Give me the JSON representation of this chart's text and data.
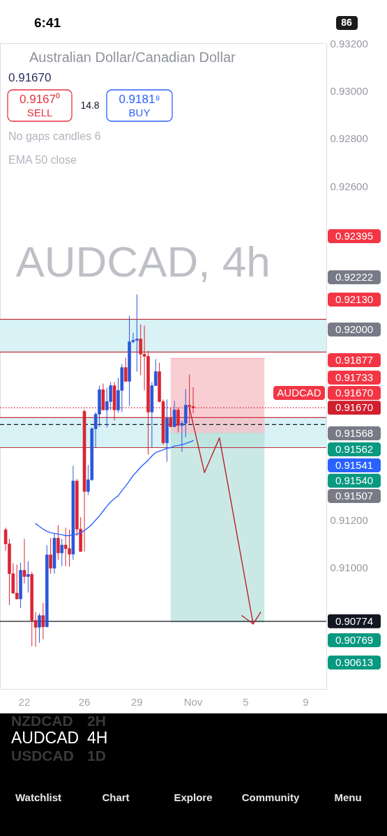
{
  "chart_data": {
    "type": "candlestick",
    "title": "Australian Dollar/Canadian Dollar",
    "subtitle": "0.91670",
    "categories": [
      null,
      null,
      null,
      null,
      null,
      null,
      "22",
      null,
      null,
      null,
      null,
      null,
      null,
      null,
      null,
      null,
      null,
      null,
      null,
      null,
      null,
      null,
      "26",
      null,
      null,
      null,
      null,
      null,
      null,
      null,
      null,
      null,
      null,
      null,
      null,
      null,
      "29",
      null,
      null,
      null,
      null,
      null,
      null,
      null,
      null,
      null,
      null,
      null,
      null,
      null,
      null,
      "Nov",
      null,
      null,
      null,
      null,
      null,
      null,
      null,
      null,
      null,
      null,
      null,
      null,
      null,
      "5",
      null,
      null,
      null,
      null,
      null,
      null,
      null,
      null,
      null,
      null,
      null,
      null,
      null,
      null,
      null,
      "9",
      null,
      null,
      null,
      null,
      null
    ],
    "ohlc": [
      null,
      [
        0.91158,
        0.91167,
        0.9107,
        0.91099
      ],
      [
        0.91099,
        0.9112,
        0.90842,
        0.90974
      ],
      [
        0.90974,
        0.91018,
        0.90892,
        0.90892
      ],
      [
        0.90892,
        0.91012,
        0.90866,
        0.90868
      ],
      [
        0.90868,
        0.9102,
        0.9083,
        0.90988
      ],
      [
        0.90988,
        0.9112,
        0.90933,
        0.90962
      ],
      [
        0.90962,
        0.91026,
        0.90895,
        0.90971
      ],
      [
        0.90971,
        0.90982,
        0.9067,
        0.90778
      ],
      [
        0.90778,
        0.90813,
        0.90667,
        0.90749
      ],
      [
        0.90749,
        0.90807,
        0.90684,
        0.90798
      ],
      [
        0.90798,
        0.90851,
        0.90699,
        0.90751
      ],
      [
        0.90751,
        0.91094,
        0.90749,
        0.91053
      ],
      [
        0.91053,
        0.91123,
        0.90974,
        0.90997
      ],
      [
        0.90997,
        0.91143,
        0.90974,
        0.91123
      ],
      [
        0.91123,
        0.91178,
        0.91032,
        0.91061
      ],
      [
        0.91061,
        0.9112,
        0.91006,
        0.91094
      ],
      [
        0.91094,
        0.91167,
        0.91006,
        0.91079
      ],
      [
        0.91079,
        0.91158,
        0.91003,
        0.91056
      ],
      [
        0.91056,
        0.91427,
        0.91032,
        0.91363
      ],
      [
        0.91363,
        0.91371,
        0.91132,
        0.91161
      ],
      [
        0.91161,
        0.91211,
        0.91067,
        0.91067
      ],
      [
        0.91655,
        0.91664,
        0.91067,
        0.91319
      ],
      [
        0.91319,
        0.9143,
        0.91304,
        0.91368
      ],
      [
        0.91368,
        0.91588,
        0.91363,
        0.91582
      ],
      [
        0.91582,
        0.91652,
        0.91503,
        0.91643
      ],
      [
        0.91643,
        0.91763,
        0.91591,
        0.91746
      ],
      [
        0.91746,
        0.91772,
        0.91661,
        0.91661
      ],
      [
        0.91661,
        0.91754,
        0.91588,
        0.91696
      ],
      [
        0.91696,
        0.91778,
        0.91661,
        0.91763
      ],
      [
        0.91763,
        0.91778,
        0.91617,
        0.91661
      ],
      [
        0.91661,
        0.91795,
        0.91649,
        0.91743
      ],
      [
        0.91743,
        0.91854,
        0.91652,
        0.91839
      ],
      [
        0.91839,
        0.9188,
        0.91781,
        0.91781
      ],
      [
        0.91781,
        0.92056,
        0.91678,
        0.91947
      ],
      [
        0.91947,
        0.91985,
        0.91942,
        0.91953
      ],
      [
        0.91953,
        0.92146,
        0.91822,
        0.91959
      ],
      [
        0.91959,
        0.9202,
        0.91807,
        0.91895
      ],
      [
        0.91895,
        0.92015,
        0.91743,
        0.91886
      ],
      [
        0.91886,
        0.91909,
        0.91474,
        0.91652
      ],
      [
        0.91652,
        0.91778,
        0.91503,
        0.91763
      ],
      [
        0.91763,
        0.91874,
        0.91763,
        0.91822
      ],
      [
        0.91822,
        0.9186,
        0.91693,
        0.91696
      ],
      [
        0.91696,
        0.91705,
        0.91515,
        0.91523
      ],
      [
        0.91523,
        0.91705,
        0.91444,
        0.91626
      ],
      [
        0.91626,
        0.9167,
        0.91588,
        0.91591
      ],
      [
        0.91591,
        0.91699,
        0.91588,
        0.91661
      ],
      [
        0.91661,
        0.9167,
        0.91567,
        0.91596
      ],
      [
        0.91596,
        0.91617,
        0.91485,
        0.91605
      ],
      [
        0.91605,
        0.91749,
        0.91547,
        0.91681
      ],
      [
        0.91681,
        0.9181,
        0.91605,
        0.91675
      ],
      [
        0.91675,
        0.91757,
        0.91646,
        0.9167
      ],
      null,
      null,
      null,
      null,
      null,
      null,
      null,
      null,
      null,
      null,
      null,
      null,
      null,
      null,
      null,
      null,
      null,
      null,
      null,
      null,
      null,
      null,
      null,
      null,
      null,
      null,
      null,
      null,
      null,
      null,
      null,
      null,
      null,
      null,
      null
    ],
    "colors": [
      null,
      "#d92532",
      "#d92532",
      "#d92532",
      "#d92532",
      "#2a56d8",
      "#d92532",
      "#2a56d8",
      "#d92532",
      "#d92532",
      "#2a56d8",
      "#d92532",
      "#2a56d8",
      "#d92532",
      "#2a56d8",
      "#d92532",
      "#2a56d8",
      "#d92532",
      "#d92532",
      "#2a56d8",
      "#d92532",
      "#d92532",
      "#d92532",
      "#2a56d8",
      "#2a56d8",
      "#2a56d8",
      "#2a56d8",
      "#d92532",
      "#2a56d8",
      "#2a56d8",
      "#d92532",
      "#2a56d8",
      "#2a56d8",
      "#d92532",
      "#2a56d8",
      "#2a56d8",
      "#2a56d8",
      "#d92532",
      "#d92532",
      "#d92532",
      "#2a56d8",
      "#2a56d8",
      "#d92532",
      "#d92532",
      "#2a56d8",
      "#d92532",
      "#2a56d8",
      "#d92532",
      "#2a56d8",
      "#2a56d8",
      "#d92532",
      "#d92532",
      null,
      null,
      null,
      null,
      null,
      null,
      null,
      null,
      null,
      null,
      null,
      null,
      null,
      null,
      null,
      null,
      null,
      null,
      null,
      null,
      null,
      null,
      null,
      null,
      null,
      null,
      null,
      null,
      null,
      null,
      null,
      null,
      null,
      null,
      null
    ],
    "series": [
      {
        "type": "line",
        "color": "#f6b9c0",
        "values": [
          null,
          null,
          null,
          null,
          null,
          null,
          null,
          null,
          null,
          null,
          null,
          null,
          null,
          null,
          null,
          null,
          null,
          null,
          null,
          null,
          null,
          null,
          null,
          null,
          null,
          null,
          null,
          null,
          null,
          null,
          null,
          null,
          null,
          null,
          null,
          null,
          null,
          null,
          null,
          null,
          null,
          null,
          null,
          null,
          null,
          0.91877,
          0.91877,
          0.91877,
          0.91877,
          0.91877,
          0.91877,
          0.91877,
          0.91877,
          0.91877,
          0.91877,
          0.91877,
          0.91877,
          0.91877,
          0.91877,
          0.91877,
          0.91877,
          0.91877,
          0.91877,
          0.91877,
          0.91877,
          0.91877,
          0.91877,
          0.91877,
          0.91877,
          0.91877,
          0.91877,
          null,
          null,
          null,
          null,
          null,
          null,
          null,
          null,
          null,
          null,
          null,
          null,
          null,
          null,
          null,
          null
        ],
        "upper": [
          null,
          null,
          null,
          null,
          null,
          null,
          null,
          null,
          null,
          null,
          null,
          null,
          null,
          null,
          null,
          null,
          null,
          null,
          null,
          null,
          null,
          null,
          null,
          null,
          null,
          null,
          null,
          null,
          null,
          null,
          null,
          null,
          null,
          null,
          null,
          null,
          null,
          null,
          null,
          null,
          null,
          null,
          null,
          null,
          null,
          0.91877,
          0.91877,
          0.91877,
          0.91877,
          0.91877,
          0.91877,
          0.91877,
          0.91877,
          0.91877,
          0.91877,
          0.91877,
          0.91877,
          0.91877,
          0.91877,
          0.91877,
          0.91877,
          0.91877,
          0.91877,
          0.91877,
          0.91877,
          0.91877,
          0.91877,
          0.91877,
          0.91877,
          0.91877,
          0.91877,
          null,
          null,
          null,
          null,
          null,
          null,
          null,
          null,
          null,
          null,
          null,
          null,
          null,
          null,
          null,
          null
        ],
        "lower": [
          null,
          null,
          null,
          null,
          null,
          null,
          null,
          null,
          null,
          null,
          null,
          null,
          null,
          null,
          null,
          null,
          null,
          null,
          null,
          null,
          null,
          null,
          null,
          null,
          null,
          null,
          null,
          null,
          null,
          null,
          null,
          null,
          null,
          null,
          null,
          null,
          null,
          null,
          null,
          null,
          null,
          null,
          null,
          null,
          null,
          0.91562,
          0.91562,
          0.91562,
          0.91562,
          0.91562,
          0.91562,
          0.91562,
          0.91562,
          0.91562,
          0.91562,
          0.91562,
          0.91562,
          0.91562,
          0.91562,
          0.91562,
          0.91562,
          0.91562,
          0.91562,
          0.91562,
          0.91562,
          0.91562,
          0.91562,
          0.91562,
          0.91562,
          0.91562,
          0.91562,
          null,
          null,
          null,
          null,
          null,
          null,
          null,
          null,
          null,
          null,
          null,
          null,
          null,
          null,
          null,
          null
        ]
      },
      {
        "type": "line",
        "color": "#b5e0d8",
        "values": [
          null,
          null,
          null,
          null,
          null,
          null,
          null,
          null,
          null,
          null,
          null,
          null,
          null,
          null,
          null,
          null,
          null,
          null,
          null,
          null,
          null,
          null,
          null,
          null,
          null,
          null,
          null,
          null,
          null,
          null,
          null,
          null,
          null,
          null,
          null,
          null,
          null,
          null,
          null,
          null,
          null,
          null,
          null,
          null,
          null,
          0.91562,
          0.91562,
          0.91562,
          0.91562,
          0.91562,
          0.91562,
          0.91562,
          0.91562,
          0.91562,
          0.91562,
          0.91562,
          0.91562,
          0.91562,
          0.91562,
          0.91562,
          0.91562,
          0.91562,
          0.91562,
          0.91562,
          0.91562,
          0.91562,
          0.91562,
          0.91562,
          0.91562,
          0.91562,
          0.91562,
          null,
          null,
          null,
          null,
          null,
          null,
          null,
          null,
          null,
          null,
          null,
          null,
          null,
          null,
          null,
          null
        ],
        "upper": [
          null,
          null,
          null,
          null,
          null,
          null,
          null,
          null,
          null,
          null,
          null,
          null,
          null,
          null,
          null,
          null,
          null,
          null,
          null,
          null,
          null,
          null,
          null,
          null,
          null,
          null,
          null,
          null,
          null,
          null,
          null,
          null,
          null,
          null,
          null,
          null,
          null,
          null,
          null,
          null,
          null,
          null,
          null,
          null,
          null,
          0.91562,
          0.91562,
          0.91562,
          0.91562,
          0.91562,
          0.91562,
          0.91562,
          0.91562,
          0.91562,
          0.91562,
          0.91562,
          0.91562,
          0.91562,
          0.91562,
          0.91562,
          0.91562,
          0.91562,
          0.91562,
          0.91562,
          0.91562,
          0.91562,
          0.91562,
          0.91562,
          0.91562,
          0.91562,
          0.91562,
          null,
          null,
          null,
          null,
          null,
          null,
          null,
          null,
          null,
          null,
          null,
          null,
          null,
          null,
          null,
          null
        ],
        "lower": [
          null,
          null,
          null,
          null,
          null,
          null,
          null,
          null,
          null,
          null,
          null,
          null,
          null,
          null,
          null,
          null,
          null,
          null,
          null,
          null,
          null,
          null,
          null,
          null,
          null,
          null,
          null,
          null,
          null,
          null,
          null,
          null,
          null,
          null,
          null,
          null,
          null,
          null,
          null,
          null,
          null,
          null,
          null,
          null,
          null,
          0.90769,
          0.90769,
          0.90769,
          0.90769,
          0.90769,
          0.90769,
          0.90769,
          0.90769,
          0.90769,
          0.90769,
          0.90769,
          0.90769,
          0.90769,
          0.90769,
          0.90769,
          0.90769,
          0.90769,
          0.90769,
          0.90769,
          0.90769,
          0.90769,
          0.90769,
          0.90769,
          0.90769,
          0.90769,
          0.90769,
          null,
          null,
          null,
          null,
          null,
          null,
          null,
          null,
          null,
          null,
          null,
          null,
          null,
          null,
          null,
          null
        ]
      },
      {
        "type": "line",
        "color": "#2962ff",
        "values": [
          null,
          null,
          null,
          null,
          null,
          null,
          null,
          null,
          null,
          0.91184,
          0.91172,
          0.91161,
          0.91152,
          0.91146,
          0.91143,
          0.9114,
          0.91137,
          0.91134,
          0.91134,
          0.91137,
          0.9114,
          0.91146,
          0.91155,
          0.91167,
          0.91181,
          0.91199,
          0.91216,
          0.91237,
          0.91257,
          0.91275,
          0.91289,
          0.91301,
          0.91322,
          0.91342,
          0.91363,
          0.91386,
          0.91403,
          0.91421,
          0.91436,
          0.9145,
          0.91468,
          0.91482,
          0.91488,
          0.91494,
          0.915,
          0.91503,
          0.91509,
          0.91512,
          0.91515,
          0.9152,
          0.91526,
          0.91532,
          null,
          null,
          null,
          null,
          null,
          null,
          null,
          null,
          null,
          null,
          null,
          null,
          null,
          null,
          null,
          null,
          null,
          null,
          null,
          null,
          null,
          null,
          null,
          null,
          null,
          null,
          null,
          null,
          null,
          null,
          null,
          null,
          null,
          null,
          null
        ]
      },
      {
        "type": "line",
        "color": "#b5222c",
        "values": [
          null,
          null,
          null,
          null,
          null,
          null,
          null,
          null,
          null,
          null,
          null,
          null,
          null,
          null,
          null,
          null,
          null,
          null,
          null,
          null,
          null,
          null,
          null,
          null,
          null,
          null,
          null,
          null,
          null,
          null,
          null,
          null,
          null,
          null,
          null,
          null,
          null,
          null,
          null,
          null,
          null,
          null,
          null,
          null,
          null,
          null,
          null,
          null,
          null,
          null,
          0.9167,
          0.91602,
          0.91534,
          0.91466,
          0.91398,
          0.91434,
          0.91471,
          0.91507,
          0.91544,
          0.91457,
          0.9137,
          0.91284,
          0.91197,
          0.9111,
          0.91023,
          0.90937,
          0.9085,
          0.90763,
          null,
          null,
          null,
          null,
          null,
          null,
          null,
          null,
          null,
          null,
          null,
          null,
          null,
          null,
          null,
          null,
          null,
          null,
          null
        ]
      },
      {
        "type": "line",
        "color": "#b5222c",
        "values": [
          null,
          null,
          null,
          null,
          null,
          null,
          null,
          null,
          null,
          null,
          null,
          null,
          null,
          null,
          null,
          null,
          null,
          null,
          null,
          null,
          null,
          null,
          null,
          null,
          null,
          null,
          null,
          null,
          null,
          null,
          null,
          null,
          null,
          null,
          null,
          null,
          null,
          null,
          null,
          null,
          null,
          null,
          null,
          null,
          null,
          null,
          null,
          null,
          null,
          null,
          null,
          null,
          null,
          null,
          null,
          null,
          null,
          null,
          null,
          null,
          null,
          null,
          null,
          null,
          0.90798,
          0.90786,
          0.90775,
          0.90763,
          0.90788,
          0.90813,
          null,
          null,
          null,
          null,
          null,
          null,
          null,
          null,
          null,
          null,
          null,
          null,
          null,
          null,
          null,
          null,
          null
        ]
      }
    ],
    "ylim": [
      0.9049,
      0.932
    ],
    "yticks": [
      {
        "value": 0.932,
        "label": "0.93200"
      },
      {
        "value": 0.93,
        "label": "0.93000"
      },
      {
        "value": 0.928,
        "label": "0.92800"
      },
      {
        "value": 0.926,
        "label": "0.92600"
      },
      {
        "value": 0.912,
        "label": "0.91200"
      },
      {
        "value": 0.91,
        "label": "0.91000"
      }
    ],
    "bands": [
      {
        "axis": "y",
        "from": 0.91904,
        "to": 0.92041,
        "color": "#d8f2f6"
      },
      {
        "axis": "y",
        "from": 0.91503,
        "to": 0.91629,
        "color": "#d8f2f6"
      }
    ],
    "ref_lines": [
      {
        "axis": "y",
        "value": 0.92041,
        "color": "#c2303c",
        "line_style": "solid"
      },
      {
        "axis": "y",
        "value": 0.91904,
        "color": "#c2303c",
        "line_style": "solid"
      },
      {
        "axis": "y",
        "value": 0.91629,
        "color": "#c2303c",
        "line_style": "solid"
      },
      {
        "axis": "y",
        "value": 0.91503,
        "color": "#c2303c",
        "line_style": "solid"
      },
      {
        "axis": "y",
        "value": 0.916,
        "color": "#131722",
        "line_style": "dashed"
      },
      {
        "axis": "y",
        "value": 0.9167,
        "label": "0.91670",
        "color": "#d01f2e",
        "line_style": "dotted"
      },
      {
        "axis": "y",
        "value": 0.90774,
        "label": "0.90774",
        "color": "#131722",
        "line_style": "solid"
      }
    ],
    "annotations": [
      "6:41",
      "86",
      "0.9167⁰",
      "SELL",
      "14.8",
      "0.9181⁸",
      "BUY",
      "No gaps candles 6",
      "EMA 50 close",
      "AUDCAD, 4h",
      "AUDCAD",
      "0.92395",
      "0.92222",
      "0.92130",
      "0.92000",
      "0.91877",
      "0.91733",
      "0.91670",
      "0.91568",
      "0.91562",
      "0.91541",
      "0.91540",
      "0.91507",
      "0.90769",
      "0.90613",
      "NZDCAD",
      "2H",
      "AUDCAD",
      "4H",
      "USDCAD",
      "1D",
      "Watchlist",
      "Chart",
      "Explore",
      "Community",
      "Menu"
    ]
  }
}
